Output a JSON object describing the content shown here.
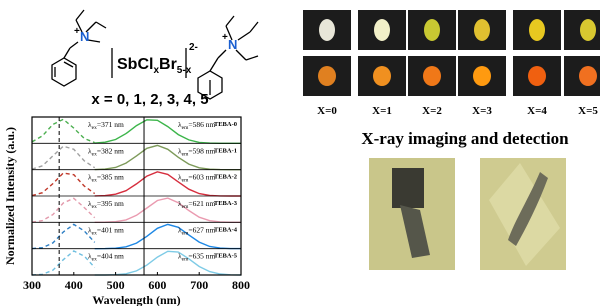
{
  "structure": {
    "cation_charge": "+",
    "nitrogen": "N",
    "anion": [
      "SbCl",
      "x",
      "Br",
      "5-x"
    ],
    "anion_charge": "2-",
    "note": "x = 0, 1, 2, 3, 4, 5"
  },
  "samples": {
    "labels": [
      "X=0",
      "X=1",
      "X=2",
      "X=3",
      "X=4",
      "X=5"
    ]
  },
  "imaging": {
    "title": "X-ray imaging and detection"
  },
  "chart_data": {
    "type": "line",
    "xlabel": "Wavelength (nm)",
    "ylabel": "Normalized Intensity (a.u.)",
    "xlim": [
      300,
      800
    ],
    "xticks": [
      300,
      400,
      500,
      600,
      700,
      800
    ],
    "ylim": [
      0,
      1
    ],
    "reference_lines": [
      {
        "x": 365,
        "style": "dashed"
      },
      {
        "x": 568,
        "style": "solid"
      }
    ],
    "x": [
      300,
      325,
      350,
      375,
      400,
      425,
      450,
      475,
      500,
      525,
      550,
      575,
      600,
      625,
      650,
      675,
      700,
      725,
      750,
      775,
      800
    ],
    "panels": [
      {
        "label": "TEBA-0",
        "excitation": {
          "label": [
            "λ",
            "ex",
            "=371 nm"
          ],
          "color": "#4caf50",
          "values": [
            0.06,
            0.31,
            0.78,
            0.99,
            0.63,
            0.2,
            0.03,
            null,
            null,
            null,
            null,
            null,
            null,
            null,
            null,
            null,
            null,
            null,
            null,
            null,
            null
          ]
        },
        "emission": {
          "label": [
            "λ",
            "em",
            "=586 nm"
          ],
          "color": "#3cb54a",
          "values": [
            null,
            null,
            null,
            null,
            null,
            null,
            0.01,
            0.048,
            0.16,
            0.4,
            0.73,
            0.97,
            0.95,
            0.69,
            0.36,
            0.14,
            0.04,
            0.009,
            0.001,
            0,
            0
          ]
        }
      },
      {
        "label": "TEBA-1",
        "excitation": {
          "label": [
            "λ",
            "ex",
            "=382 nm"
          ],
          "color": "#a0a0a0",
          "values": [
            0.02,
            0.16,
            0.57,
            0.97,
            0.84,
            0.36,
            0.08,
            null,
            null,
            null,
            null,
            null,
            null,
            null,
            null,
            null,
            null,
            null,
            null,
            null,
            null
          ]
        },
        "emission": {
          "label": [
            "λ",
            "em",
            "=598 nm"
          ],
          "color": "#7d9a5a",
          "values": [
            null,
            null,
            null,
            null,
            null,
            null,
            0.004,
            0.024,
            0.09,
            0.27,
            0.57,
            0.88,
            1.0,
            0.84,
            0.51,
            0.23,
            0.076,
            0.019,
            0.003,
            0,
            0
          ]
        }
      },
      {
        "label": "TEBA-2",
        "excitation": {
          "label": [
            "λ",
            "ex",
            "=385 nm"
          ],
          "color": "#c0392b",
          "values": [
            0.018,
            0.135,
            0.51,
            0.95,
            0.88,
            0.41,
            0.1,
            null,
            null,
            null,
            null,
            null,
            null,
            null,
            null,
            null,
            null,
            null,
            null,
            null,
            null
          ]
        },
        "emission": {
          "label": [
            "λ",
            "em",
            "=603 nm"
          ],
          "color": "#d62e3e",
          "values": [
            null,
            null,
            null,
            null,
            null,
            null,
            0.003,
            0.018,
            0.073,
            0.22,
            0.5,
            0.82,
            1.0,
            0.89,
            0.58,
            0.28,
            0.1,
            0.025,
            0.005,
            0.001,
            0
          ]
        }
      },
      {
        "label": "TEBA-3",
        "excitation": {
          "label": [
            "λ",
            "ex",
            "=395 nm"
          ],
          "color": "#e39aac",
          "values": [
            0.007,
            0.07,
            0.32,
            0.8,
            0.99,
            0.61,
            0.19,
            null,
            null,
            null,
            null,
            null,
            null,
            null,
            null,
            null,
            null,
            null,
            null,
            null,
            null
          ]
        },
        "emission": {
          "label": [
            "λ",
            "em",
            "=621 nm"
          ],
          "color": "#ea9bb0",
          "values": [
            null,
            null,
            null,
            null,
            null,
            null,
            0.001,
            0.005,
            0.027,
            0.1,
            0.29,
            0.59,
            0.9,
            1.0,
            0.81,
            0.49,
            0.21,
            0.069,
            0.016,
            0.003,
            0
          ]
        }
      },
      {
        "label": "TEBA-4",
        "excitation": {
          "label": [
            "λ",
            "ex",
            "=401 nm"
          ],
          "color": "#2e7fc4",
          "values": [
            0.004,
            0.04,
            0.24,
            0.69,
            1.0,
            0.73,
            0.26,
            null,
            null,
            null,
            null,
            null,
            null,
            null,
            null,
            null,
            null,
            null,
            null,
            null,
            null
          ]
        },
        "emission": {
          "label": [
            "λ",
            "em",
            "=627 nm"
          ],
          "color": "#1e88e5",
          "values": [
            null,
            null,
            null,
            null,
            null,
            null,
            0,
            0.003,
            0.019,
            0.076,
            0.23,
            0.51,
            0.84,
            1.0,
            0.88,
            0.57,
            0.27,
            0.09,
            0.024,
            0.004,
            0.001
          ]
        }
      },
      {
        "label": "TEBA-5",
        "excitation": {
          "label": [
            "λ",
            "ex",
            "=404 nm"
          ],
          "color": "#6fbfe0",
          "values": [
            0.002,
            0.03,
            0.2,
            0.63,
            0.99,
            0.78,
            0.31,
            null,
            null,
            null,
            null,
            null,
            null,
            null,
            null,
            null,
            null,
            null,
            null,
            null,
            null
          ]
        },
        "emission": {
          "label": [
            "λ",
            "em",
            "=635 nm"
          ],
          "color": "#7ecbe6",
          "values": [
            null,
            null,
            null,
            null,
            null,
            null,
            0,
            0.002,
            0.011,
            0.05,
            0.17,
            0.41,
            0.74,
            0.98,
            0.95,
            0.67,
            0.35,
            0.14,
            0.04,
            0.008,
            0.001
          ]
        }
      }
    ]
  }
}
